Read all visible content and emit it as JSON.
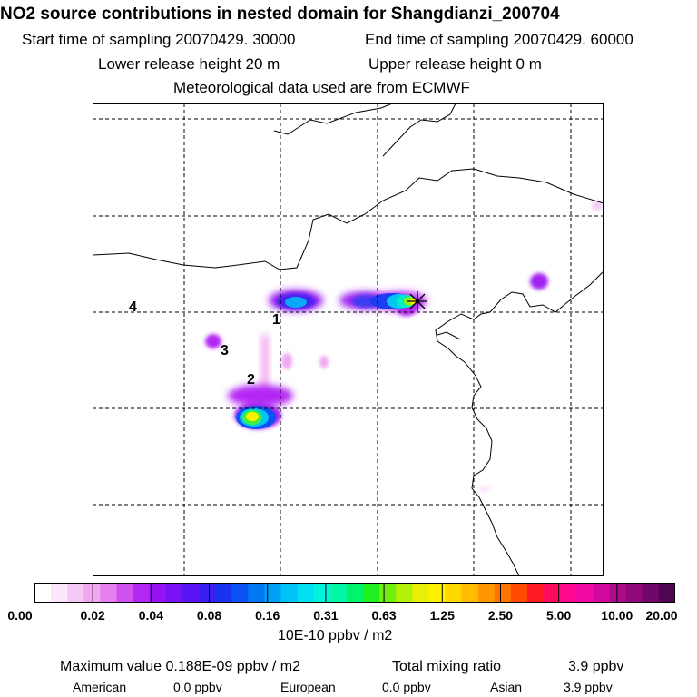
{
  "title": "NO2 source contributions in nested domain for Shangdianzi_200704",
  "header": {
    "start_label": "Start time of sampling 20070429. 30000",
    "end_label": "End time of sampling 20070429. 60000",
    "lower_label": "Lower release height   20 m",
    "upper_label": "Upper release height    0 m",
    "met_label": "Meteorological data used are from ECMWF"
  },
  "map": {
    "region_labels": [
      "1",
      "2",
      "3",
      "4"
    ],
    "site_marker": "asterisk-icon"
  },
  "colorbar": {
    "ticks": [
      "0.00",
      "0.02",
      "0.04",
      "0.08",
      "0.16",
      "0.31",
      "0.63",
      "1.25",
      "2.50",
      "5.00",
      "10.00",
      "20.00"
    ],
    "colors": [
      "#ffffff",
      "#fce6fc",
      "#f5c8f5",
      "#f0a8f0",
      "#e680ee",
      "#d050f0",
      "#b428f4",
      "#9614f4",
      "#7a10f4",
      "#5a14f4",
      "#3a1ef2",
      "#1c32f2",
      "#0a52f4",
      "#0478f4",
      "#00a0f8",
      "#00c4f8",
      "#00e0f0",
      "#00f4dc",
      "#00f8a8",
      "#00f46a",
      "#20f020",
      "#70f00c",
      "#b4f00a",
      "#e8f00a",
      "#fff000",
      "#ffd800",
      "#ffbc00",
      "#ff9800",
      "#ff7400",
      "#ff4a00",
      "#ff1a24",
      "#ff0a60",
      "#ff0a90",
      "#f00aa8",
      "#d00a9c",
      "#b00a8c",
      "#90087a",
      "#700668",
      "#500454"
    ],
    "unit_label": "10E-10 ppbv / m2"
  },
  "footer": {
    "max_label": "Maximum value  0.188E-09 ppbv / m2",
    "total_label": "Total mixing ratio",
    "total_value": "3.9 ppbv",
    "american_label": "American",
    "american_value": "0.0 ppbv",
    "european_label": "European",
    "european_value": "0.0 ppbv",
    "asian_label": "Asian",
    "asian_value": "3.9 ppbv"
  }
}
